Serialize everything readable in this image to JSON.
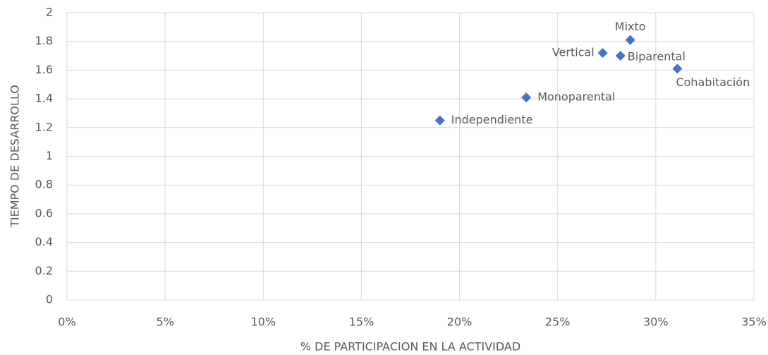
{
  "chart_data": {
    "type": "scatter",
    "x_label": "% DE PARTICIPACION EN LA ACTIVIDAD",
    "y_label": "TIEMPO DE DESARROLLO",
    "labels": [
      "Independiente",
      "Monoparental",
      "Vertical",
      "Biparental",
      "Mixto",
      "Cohabitación"
    ],
    "x": [
      19.0,
      23.4,
      27.3,
      28.2,
      28.7,
      31.1
    ],
    "series": [
      {
        "name": null,
        "color": "#4472c4",
        "values": [
          1.25,
          1.41,
          1.72,
          1.7,
          1.81,
          1.61
        ]
      }
    ],
    "xlim": [
      0,
      35
    ],
    "xticks": [
      {
        "value": 0,
        "label": "0%"
      },
      {
        "value": 5,
        "label": "5%"
      },
      {
        "value": 10,
        "label": "10%"
      },
      {
        "value": 15,
        "label": "15%"
      },
      {
        "value": 20,
        "label": "20%"
      },
      {
        "value": 25,
        "label": "25%"
      },
      {
        "value": 30,
        "label": "30%"
      },
      {
        "value": 35,
        "label": "35%"
      }
    ],
    "ylim": [
      0,
      2
    ],
    "yticks": [
      0,
      0.2,
      0.4,
      0.6,
      0.8,
      1,
      1.2,
      1.4,
      1.6,
      1.8,
      2
    ],
    "grid": true
  }
}
